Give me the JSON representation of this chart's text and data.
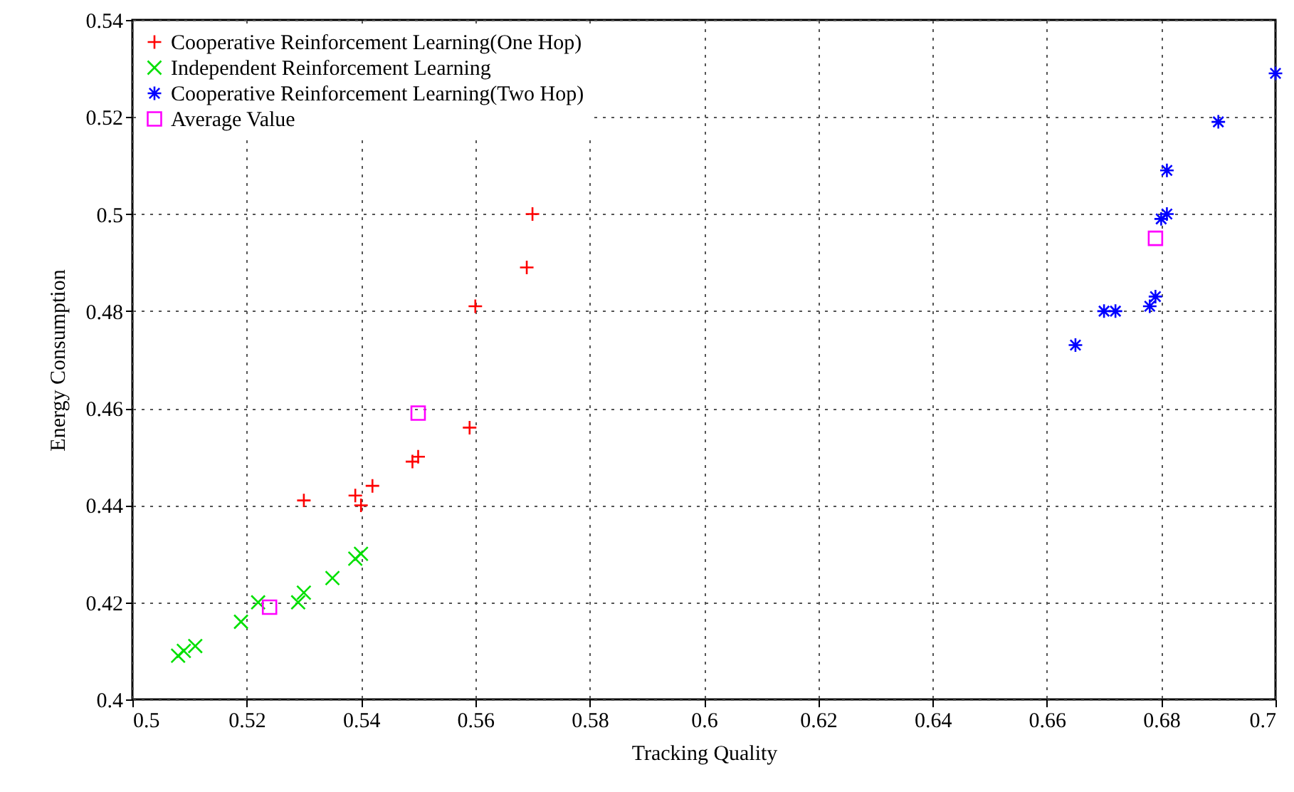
{
  "chart_data": {
    "type": "scatter",
    "xlabel": "Tracking Quality",
    "ylabel": "Energy Consumption",
    "xlim": [
      0.5,
      0.7
    ],
    "xticks": [
      0.5,
      0.52,
      0.54,
      0.56,
      0.58,
      0.6,
      0.62,
      0.64,
      0.66,
      0.68,
      0.7
    ],
    "ylim": [
      0.4,
      0.54
    ],
    "yticks": [
      0.4,
      0.42,
      0.44,
      0.46,
      0.48,
      0.5,
      0.52,
      0.54
    ],
    "grid": true,
    "legend": "top left",
    "series": [
      {
        "name": "Cooperative Reinforcement Learning(One Hop)",
        "color": "#ff0000",
        "x": [
          0.53,
          0.539,
          0.54,
          0.542,
          0.549,
          0.55,
          0.559,
          0.56,
          0.569,
          0.57
        ],
        "values": [
          0.441,
          0.442,
          0.44,
          0.444,
          0.449,
          0.45,
          0.456,
          0.481,
          0.489,
          0.5
        ]
      },
      {
        "name": "Independent Reinforcement Learning",
        "color": "#00e000",
        "x": [
          0.508,
          0.509,
          0.511,
          0.519,
          0.522,
          0.529,
          0.53,
          0.535,
          0.539,
          0.54
        ],
        "values": [
          0.409,
          0.41,
          0.411,
          0.416,
          0.42,
          0.42,
          0.422,
          0.425,
          0.429,
          0.43
        ]
      },
      {
        "name": "Cooperative Reinforcement Learning(Two Hop)",
        "color": "#0000ff",
        "x": [
          0.665,
          0.67,
          0.672,
          0.678,
          0.679,
          0.68,
          0.681,
          0.681,
          0.69,
          0.7
        ],
        "values": [
          0.473,
          0.48,
          0.48,
          0.481,
          0.483,
          0.499,
          0.5,
          0.509,
          0.519,
          0.529
        ]
      },
      {
        "name": "Average Value",
        "color": "#ff00ff",
        "x": [
          0.524,
          0.55,
          0.679
        ],
        "values": [
          0.419,
          0.459,
          0.495
        ]
      }
    ]
  }
}
